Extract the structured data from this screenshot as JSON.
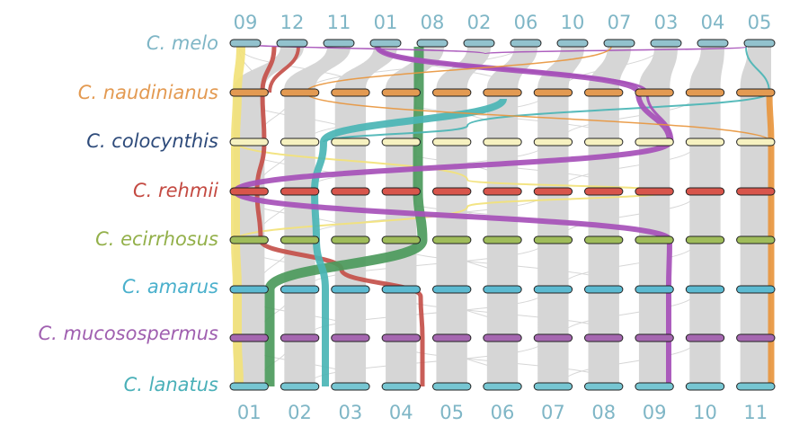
{
  "species": [
    {
      "name": "C. melo",
      "color": "#7fb6c6",
      "bar_color": "#92c2cd"
    },
    {
      "name": "C. naudinianus",
      "color": "#e39a52",
      "bar_color": "#e39a52"
    },
    {
      "name": "C. colocynthis",
      "color": "#2d4a7a",
      "bar_color": "#f6f1c0"
    },
    {
      "name": "C. rehmii",
      "color": "#c44a42",
      "bar_color": "#d8554b"
    },
    {
      "name": "C. ecirrhosus",
      "color": "#93b04a",
      "bar_color": "#9fbc5a"
    },
    {
      "name": "C. amarus",
      "color": "#4ab0cc",
      "bar_color": "#5cbad1"
    },
    {
      "name": "C. mucosospermus",
      "color": "#a060b0",
      "bar_color": "#a567b0"
    },
    {
      "name": "C. lanatus",
      "color": "#4ab0b8",
      "bar_color": "#76c6d2"
    }
  ],
  "top_chromosomes": [
    "09",
    "12",
    "11",
    "01",
    "08",
    "02",
    "06",
    "10",
    "07",
    "03",
    "04",
    "05"
  ],
  "bottom_chromosomes": [
    "01",
    "02",
    "03",
    "04",
    "05",
    "06",
    "07",
    "08",
    "09",
    "10",
    "11"
  ],
  "highlight_colors": {
    "yellow": "#f2e27a",
    "red": "#c4504a",
    "green": "#4c9a5c",
    "teal": "#4ab5b5",
    "purple": "#a650b8",
    "orange": "#e8963e",
    "grey": "#cfcfcf"
  }
}
